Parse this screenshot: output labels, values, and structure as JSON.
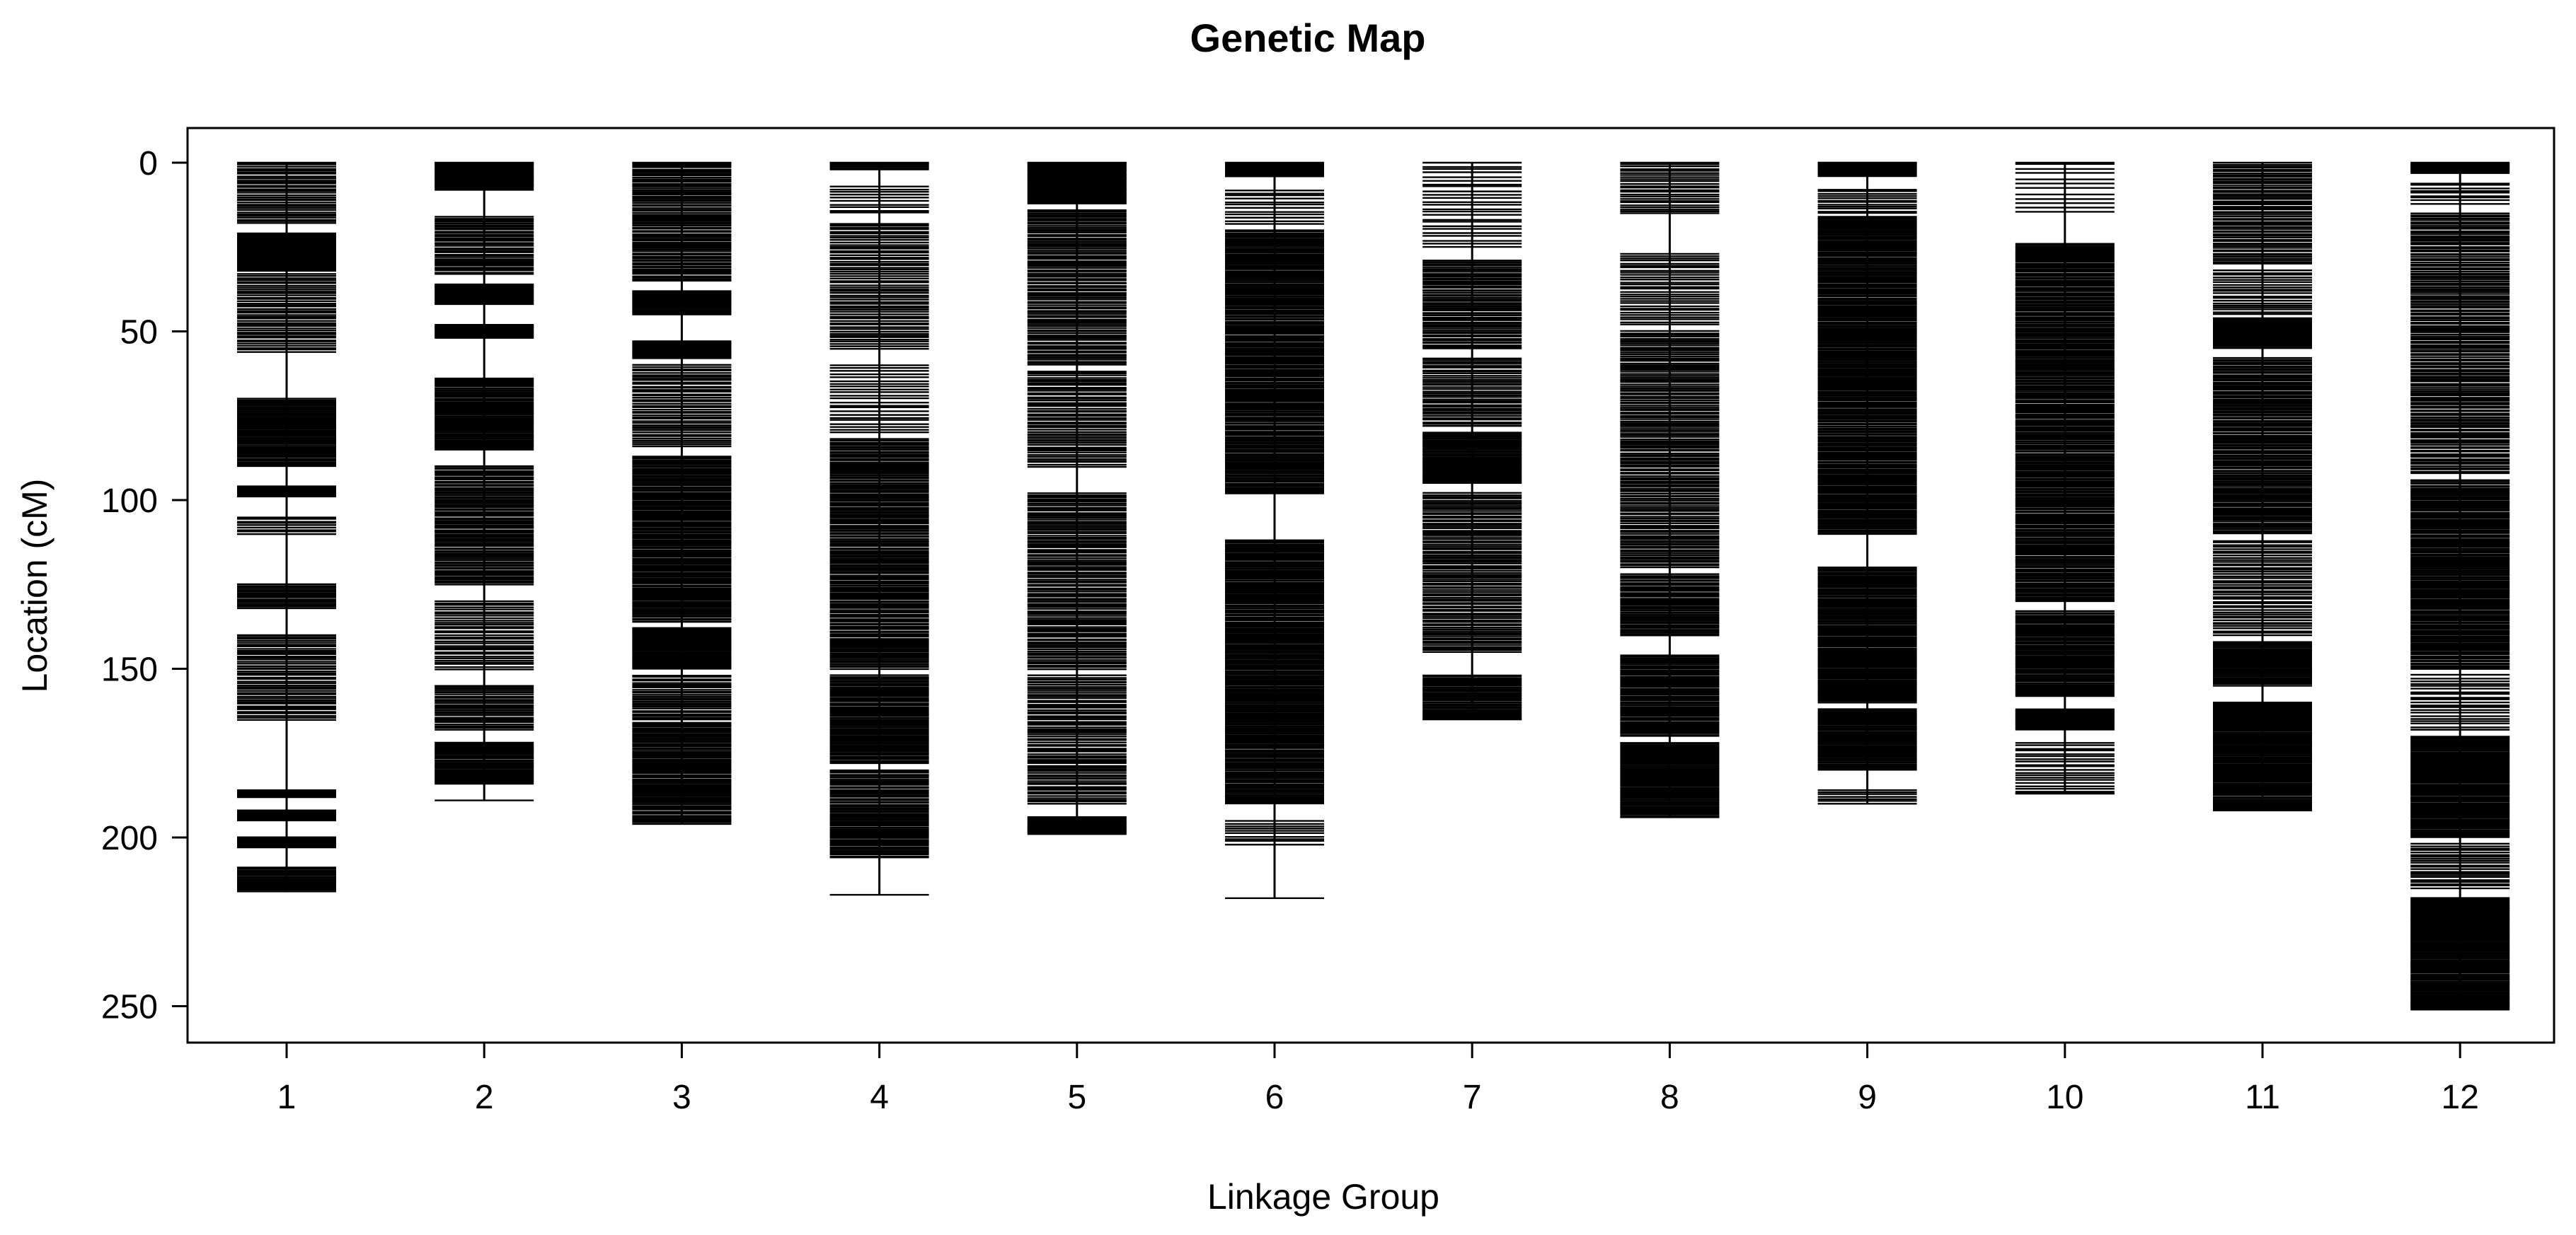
{
  "colors": {
    "ink": "#000000",
    "background": "#ffffff"
  },
  "chart_data": {
    "type": "genetic-map",
    "title": "Genetic Map",
    "xlabel": "Linkage Group",
    "ylabel": "Location (cM)",
    "categories": [
      "1",
      "2",
      "3",
      "4",
      "5",
      "6",
      "7",
      "8",
      "9",
      "10",
      "11",
      "12"
    ],
    "ylim": [
      0,
      262
    ],
    "y_reversed": true,
    "yticks": [
      0,
      50,
      100,
      150,
      200,
      250
    ],
    "grid": false,
    "legend": "none",
    "groups": [
      {
        "name": "1",
        "length": 216,
        "blocks": [
          [
            0,
            18,
            0.55
          ],
          [
            21,
            32,
            1.0
          ],
          [
            33,
            56,
            0.55
          ],
          [
            70,
            90,
            0.8
          ],
          [
            96,
            99,
            1.0
          ],
          [
            105,
            110,
            0.5
          ],
          [
            125,
            132,
            0.7
          ],
          [
            140,
            165,
            0.55
          ],
          [
            186,
            188,
            1.0
          ],
          [
            192,
            195,
            1.0
          ],
          [
            200,
            203,
            1.0
          ],
          [
            209,
            216,
            0.8
          ]
        ]
      },
      {
        "name": "2",
        "length": 189,
        "blocks": [
          [
            0,
            8,
            1.0
          ],
          [
            16,
            33,
            0.65
          ],
          [
            36,
            42,
            1.0
          ],
          [
            48,
            52,
            1.0
          ],
          [
            64,
            85,
            0.8
          ],
          [
            90,
            125,
            0.7
          ],
          [
            130,
            150,
            0.5
          ],
          [
            155,
            168,
            0.6
          ],
          [
            172,
            184,
            0.85
          ]
        ]
      },
      {
        "name": "3",
        "length": 196,
        "blocks": [
          [
            0,
            35,
            0.65
          ],
          [
            38,
            45,
            1.0
          ],
          [
            53,
            58,
            1.0
          ],
          [
            60,
            84,
            0.55
          ],
          [
            87,
            136,
            0.75
          ],
          [
            138,
            150,
            1.0
          ],
          [
            152,
            165,
            0.6
          ],
          [
            166,
            196,
            0.75
          ]
        ]
      },
      {
        "name": "4",
        "length": 217,
        "blocks": [
          [
            0,
            2,
            1.0
          ],
          [
            7,
            15,
            0.35
          ],
          [
            18,
            55,
            0.5
          ],
          [
            60,
            80,
            0.35
          ],
          [
            82,
            150,
            0.7
          ],
          [
            152,
            178,
            0.8
          ],
          [
            180,
            206,
            0.7
          ]
        ]
      },
      {
        "name": "5",
        "length": 199,
        "blocks": [
          [
            0,
            12,
            1.0
          ],
          [
            14,
            60,
            0.6
          ],
          [
            62,
            90,
            0.55
          ],
          [
            98,
            150,
            0.6
          ],
          [
            152,
            190,
            0.55
          ],
          [
            194,
            199,
            1.0
          ]
        ]
      },
      {
        "name": "6",
        "length": 218,
        "blocks": [
          [
            0,
            4,
            1.0
          ],
          [
            8,
            18,
            0.35
          ],
          [
            20,
            98,
            0.75
          ],
          [
            112,
            190,
            0.8
          ],
          [
            195,
            202,
            0.4
          ]
        ]
      },
      {
        "name": "7",
        "length": 165,
        "blocks": [
          [
            0,
            25,
            0.3
          ],
          [
            29,
            55,
            0.65
          ],
          [
            58,
            78,
            0.55
          ],
          [
            80,
            95,
            1.0
          ],
          [
            98,
            145,
            0.6
          ],
          [
            152,
            165,
            0.85
          ]
        ]
      },
      {
        "name": "8",
        "length": 194,
        "blocks": [
          [
            0,
            15,
            0.5
          ],
          [
            27,
            48,
            0.45
          ],
          [
            50,
            120,
            0.6
          ],
          [
            122,
            140,
            0.75
          ],
          [
            146,
            170,
            0.8
          ],
          [
            172,
            194,
            0.9
          ]
        ]
      },
      {
        "name": "9",
        "length": 190,
        "blocks": [
          [
            0,
            4,
            1.0
          ],
          [
            8,
            15,
            0.5
          ],
          [
            16,
            110,
            0.8
          ],
          [
            120,
            160,
            0.85
          ],
          [
            162,
            180,
            0.9
          ],
          [
            186,
            190,
            0.5
          ]
        ]
      },
      {
        "name": "10",
        "length": 187,
        "blocks": [
          [
            0,
            15,
            0.2
          ],
          [
            24,
            130,
            0.75
          ],
          [
            133,
            158,
            0.8
          ],
          [
            162,
            168,
            1.0
          ],
          [
            172,
            187,
            0.4
          ]
        ]
      },
      {
        "name": "11",
        "length": 192,
        "blocks": [
          [
            0,
            30,
            0.6
          ],
          [
            32,
            45,
            0.45
          ],
          [
            46,
            55,
            1.0
          ],
          [
            58,
            110,
            0.7
          ],
          [
            112,
            140,
            0.5
          ],
          [
            142,
            155,
            0.8
          ],
          [
            160,
            192,
            0.85
          ]
        ]
      },
      {
        "name": "12",
        "length": 251,
        "blocks": [
          [
            0,
            3,
            1.0
          ],
          [
            6,
            12,
            0.4
          ],
          [
            15,
            92,
            0.6
          ],
          [
            94,
            150,
            0.75
          ],
          [
            152,
            168,
            0.4
          ],
          [
            170,
            200,
            0.85
          ],
          [
            202,
            215,
            0.5
          ],
          [
            218,
            251,
            0.9
          ]
        ]
      }
    ]
  }
}
